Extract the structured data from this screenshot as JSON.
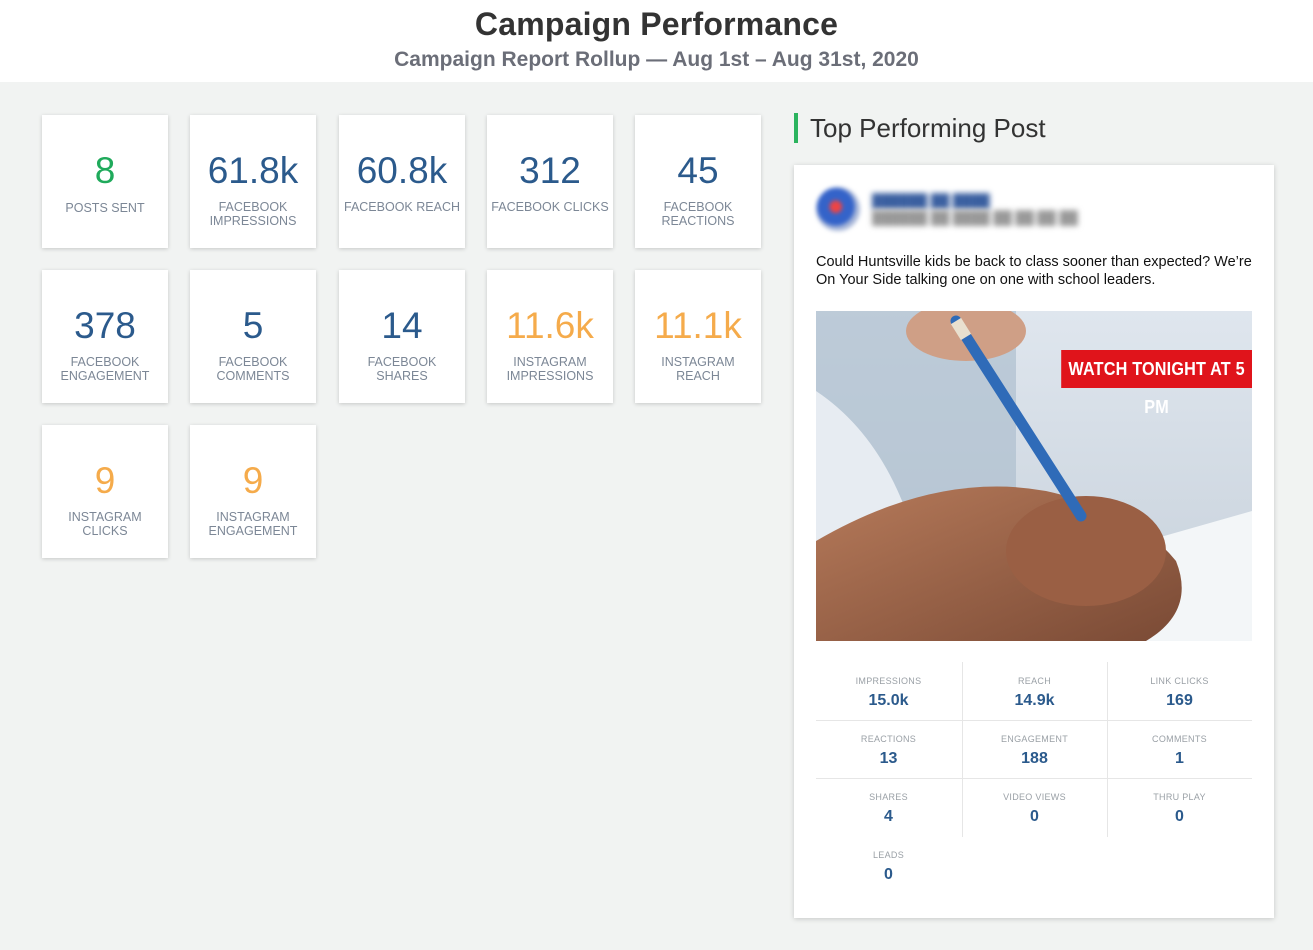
{
  "header": {
    "title": "Campaign Performance",
    "subtitle": "Campaign Report Rollup — Aug 1st – Aug 31st, 2020"
  },
  "metrics": [
    {
      "value": "8",
      "label": "POSTS SENT",
      "color": "#1faa5b"
    },
    {
      "value": "61.8k",
      "label": "FACEBOOK IMPRESSIONS",
      "color": "#2b5a8c"
    },
    {
      "value": "60.8k",
      "label": "FACEBOOK REACH",
      "color": "#2b5a8c"
    },
    {
      "value": "312",
      "label": "FACEBOOK CLICKS",
      "color": "#2b5a8c"
    },
    {
      "value": "45",
      "label": "FACEBOOK REACTIONS",
      "color": "#2b5a8c"
    },
    {
      "value": "378",
      "label": "FACEBOOK ENGAGEMENT",
      "color": "#2b5a8c"
    },
    {
      "value": "5",
      "label": "FACEBOOK COMMENTS",
      "color": "#2b5a8c"
    },
    {
      "value": "14",
      "label": "FACEBOOK SHARES",
      "color": "#2b5a8c"
    },
    {
      "value": "11.6k",
      "label": "INSTAGRAM IMPRESSIONS",
      "color": "#f5ab4b"
    },
    {
      "value": "11.1k",
      "label": "INSTAGRAM REACH",
      "color": "#f5ab4b"
    },
    {
      "value": "9",
      "label": "INSTAGRAM CLICKS",
      "color": "#f5ab4b"
    },
    {
      "value": "9",
      "label": "INSTAGRAM ENGAGEMENT",
      "color": "#f5ab4b"
    }
  ],
  "top_post": {
    "section_title": "Top Performing Post",
    "text": "Could Huntsville kids be back to class sooner than expected? We’re On Your Side talking one on one with school leaders.",
    "image_banner": "WATCH TONIGHT AT 5 PM",
    "stats": [
      {
        "label": "IMPRESSIONS",
        "value": "15.0k"
      },
      {
        "label": "REACH",
        "value": "14.9k"
      },
      {
        "label": "LINK CLICKS",
        "value": "169"
      },
      {
        "label": "REACTIONS",
        "value": "13"
      },
      {
        "label": "ENGAGEMENT",
        "value": "188"
      },
      {
        "label": "COMMENTS",
        "value": "1"
      },
      {
        "label": "SHARES",
        "value": "4"
      },
      {
        "label": "VIDEO VIEWS",
        "value": "0"
      },
      {
        "label": "THRU PLAY",
        "value": "0"
      },
      {
        "label": "LEADS",
        "value": "0"
      }
    ]
  }
}
